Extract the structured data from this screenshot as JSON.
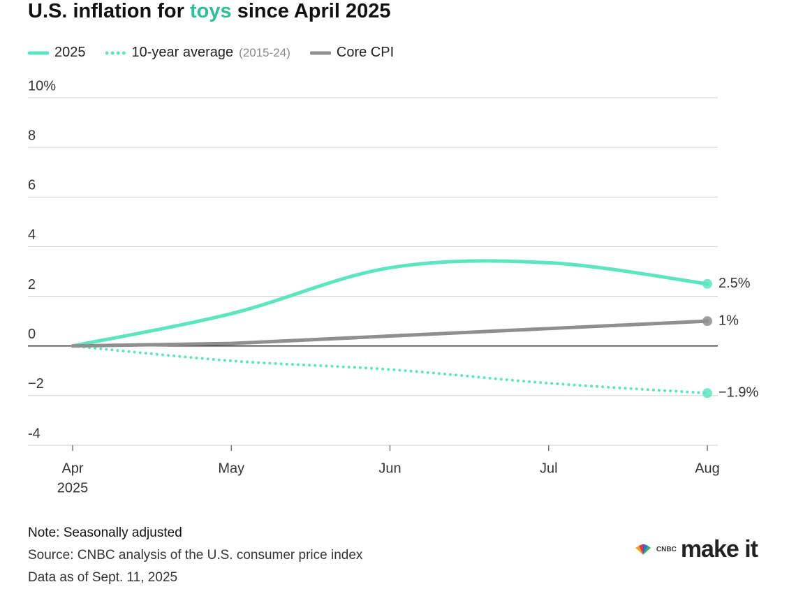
{
  "chart_data": {
    "type": "line",
    "title": [
      "U.S. inflation for",
      "toys",
      "since April 2025"
    ],
    "title_highlight_color": "#2fbf95",
    "categories": [
      "Apr",
      "May",
      "Jun",
      "Jul",
      "Aug"
    ],
    "x_sublabels": [
      "2025",
      null,
      null,
      null,
      null
    ],
    "series": [
      {
        "name": "2025",
        "color": "#5ce6bf",
        "style": "solid",
        "smooth": true,
        "label_color": "#1b7a5c",
        "values": [
          0,
          1.3,
          3.15,
          3.35,
          2.5
        ],
        "value_labels": [
          null,
          null,
          null,
          null,
          "2.5%"
        ]
      },
      {
        "name": "10-year average",
        "note": "(2015-24)",
        "color": "#5ce6bf",
        "style": "dotted",
        "smooth": true,
        "label_color": "#1b7a5c",
        "values": [
          0,
          -0.6,
          -0.95,
          -1.5,
          -1.9
        ],
        "value_labels": [
          null,
          null,
          null,
          null,
          "−1.9%"
        ]
      },
      {
        "name": "Core CPI",
        "color": "#8f8f8f",
        "style": "solid",
        "smooth": false,
        "label_color": "#6b6b6b",
        "values": [
          0,
          0.1,
          0.4,
          0.7,
          1.0
        ],
        "value_labels": [
          null,
          null,
          null,
          null,
          "1%"
        ]
      }
    ],
    "ylim": [
      -4,
      10
    ],
    "yticks": [
      -4,
      {
        "value": -2,
        "label": "−2"
      },
      0,
      2,
      4,
      6,
      8,
      {
        "value": 10,
        "label": "10%"
      }
    ],
    "grid": true,
    "notes": [
      "Note: Seasonally adjusted",
      "Source: CNBC analysis of the U.S. consumer price index",
      "Data as of Sept. 11, 2025"
    ],
    "brand": {
      "network": "CNBC",
      "name": "make it"
    }
  }
}
